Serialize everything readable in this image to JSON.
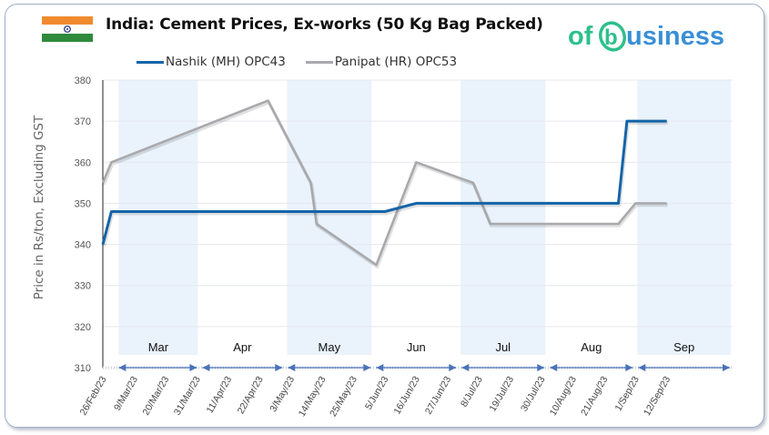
{
  "header": {
    "title": "India: Cement Prices, Ex-works (50 Kg Bag Packed)",
    "flag": "india-flag",
    "logo_text_pre": "of",
    "logo_text_b": "b",
    "logo_text_post": "usiness"
  },
  "colors": {
    "nashik": "#1464a8",
    "panipat": "#a9a9ad",
    "band": "#eaf3fc",
    "axis_arrow": "#4a72b8",
    "logo_green": "#2ebf8c",
    "logo_blue": "#3a8fd6"
  },
  "chart_data": {
    "type": "line",
    "title": "India: Cement Prices, Ex-works (50 Kg Bag Packed)",
    "xlabel": "",
    "ylabel": "Price in Rs/ton, Excluding GST",
    "ylim": [
      310,
      380
    ],
    "yticks": [
      310,
      320,
      330,
      340,
      350,
      360,
      370,
      380
    ],
    "grid": true,
    "legend_position": "top",
    "x_tick_labels": [
      "26/Feb/23",
      "9/Mar/23",
      "20/Mar/23",
      "31/Mar/23",
      "11/Apr/23",
      "22/Apr/23",
      "3/May/23",
      "14/May/23",
      "25/May/23",
      "5/Jun/23",
      "16/Jun/23",
      "27/Jun/23",
      "8/Jul/23",
      "19/Jul/23",
      "30/Jul/23",
      "10/Aug/23",
      "21/Aug/23",
      "1/Sep/23",
      "12/Sep/23"
    ],
    "month_bands": [
      {
        "label": "Mar",
        "shaded": true
      },
      {
        "label": "Apr",
        "shaded": false
      },
      {
        "label": "May",
        "shaded": true
      },
      {
        "label": "Jun",
        "shaded": false
      },
      {
        "label": "Jul",
        "shaded": true
      },
      {
        "label": "Aug",
        "shaded": false
      },
      {
        "label": "Sep",
        "shaded": true
      }
    ],
    "series": [
      {
        "name": "Nashik (MH) OPC43",
        "points": [
          {
            "x": "26/Feb/23",
            "y": 340
          },
          {
            "x": "1/Mar/23",
            "y": 348
          },
          {
            "x": "5/Jun/23",
            "y": 348
          },
          {
            "x": "16/Jun/23",
            "y": 350
          },
          {
            "x": "26/Aug/23",
            "y": 350
          },
          {
            "x": "29/Aug/23",
            "y": 370
          },
          {
            "x": "12/Sep/23",
            "y": 370
          }
        ]
      },
      {
        "name": "Panipat (HR) OPC53",
        "points": [
          {
            "x": "26/Feb/23",
            "y": 355
          },
          {
            "x": "1/Mar/23",
            "y": 360
          },
          {
            "x": "25/Apr/23",
            "y": 375
          },
          {
            "x": "10/May/23",
            "y": 355
          },
          {
            "x": "12/May/23",
            "y": 345
          },
          {
            "x": "2/Jun/23",
            "y": 335
          },
          {
            "x": "16/Jun/23",
            "y": 360
          },
          {
            "x": "6/Jul/23",
            "y": 355
          },
          {
            "x": "12/Jul/23",
            "y": 345
          },
          {
            "x": "26/Aug/23",
            "y": 345
          },
          {
            "x": "1/Sep/23",
            "y": 350
          },
          {
            "x": "12/Sep/23",
            "y": 350
          }
        ]
      }
    ]
  }
}
